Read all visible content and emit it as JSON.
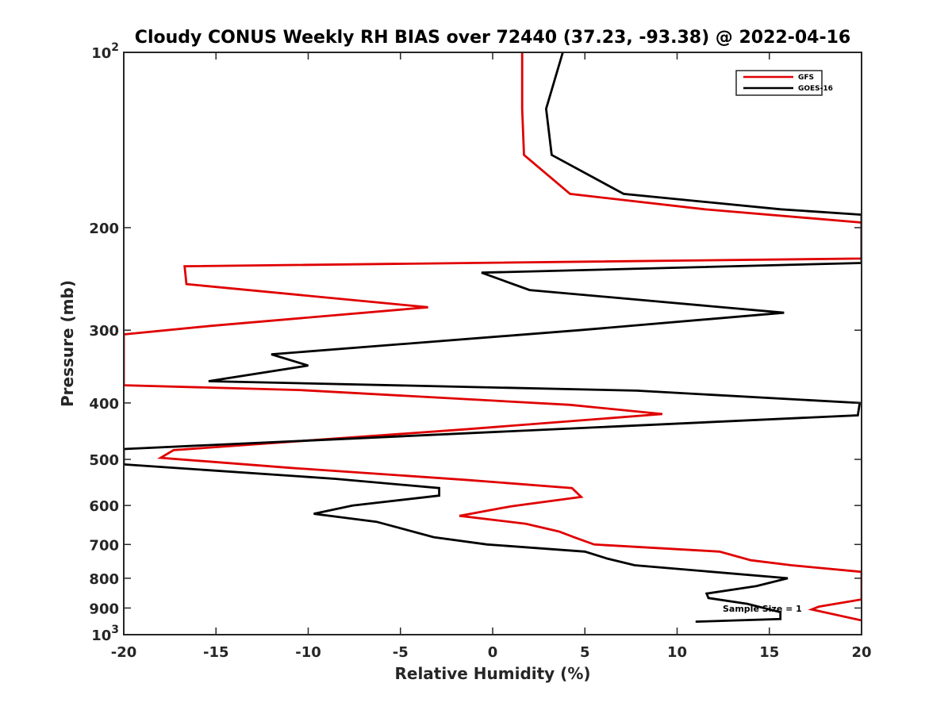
{
  "chart_data": {
    "type": "line",
    "title": "Cloudy CONUS Weekly RH BIAS over 72440 (37.23, -93.38) @ 2022-04-16",
    "xlabel": "Relative Humidity (%)",
    "ylabel": "Pressure (mb)",
    "xlim": [
      -20,
      20
    ],
    "ylim": [
      100,
      1000
    ],
    "y_scale": "log",
    "y_reversed": true,
    "grid": false,
    "legend_position": "top-right",
    "x_ticks": [
      -20,
      -15,
      -10,
      -5,
      0,
      5,
      10,
      15,
      20
    ],
    "x_tick_labels": [
      "-20",
      "-15",
      "-10",
      "-5",
      "0",
      "5",
      "10",
      "15",
      "20"
    ],
    "y_ticks": [
      {
        "value": 100,
        "base": "10",
        "exp": "2"
      },
      {
        "value": 200,
        "label": "200"
      },
      {
        "value": 300,
        "label": "300"
      },
      {
        "value": 400,
        "label": "400"
      },
      {
        "value": 500,
        "label": "500"
      },
      {
        "value": 600,
        "label": "600"
      },
      {
        "value": 700,
        "label": "700"
      },
      {
        "value": 800,
        "label": "800"
      },
      {
        "value": 900,
        "label": "900"
      },
      {
        "value": 1000,
        "base": "10",
        "exp": "3"
      }
    ],
    "annotation": "Sample Size = 1",
    "series": [
      {
        "name": "GFS",
        "color": "#e00000",
        "points": [
          [
            1.6,
            100
          ],
          [
            1.6,
            125
          ],
          [
            1.7,
            150
          ],
          [
            4.2,
            175
          ],
          [
            11.5,
            186
          ],
          [
            20,
            196
          ],
          [
            20,
            226
          ],
          [
            -16.7,
            233
          ],
          [
            -16.6,
            250
          ],
          [
            -3.5,
            274
          ],
          [
            -15.3,
            295
          ],
          [
            -20,
            305
          ],
          [
            -20,
            373
          ],
          [
            -10.5,
            380
          ],
          [
            4.2,
            403
          ],
          [
            9.2,
            418
          ],
          [
            -1.5,
            444
          ],
          [
            -17.3,
            482
          ],
          [
            -18.0,
            497
          ],
          [
            -11.0,
            517
          ],
          [
            -1.5,
            542
          ],
          [
            4.3,
            560
          ],
          [
            4.8,
            580
          ],
          [
            1.0,
            602
          ],
          [
            -1.8,
            625
          ],
          [
            1.8,
            645
          ],
          [
            3.6,
            665
          ],
          [
            4.4,
            680
          ],
          [
            5.5,
            700
          ],
          [
            12.3,
            720
          ],
          [
            14,
            745
          ],
          [
            16.2,
            760
          ],
          [
            20,
            780
          ],
          [
            20,
            870
          ],
          [
            17.7,
            895
          ],
          [
            17.3,
            905
          ],
          [
            20,
            945
          ]
        ]
      },
      {
        "name": "GOES-16",
        "color": "#000000",
        "points": [
          [
            3.8,
            100
          ],
          [
            2.9,
            125
          ],
          [
            3.2,
            150
          ],
          [
            7.1,
            175
          ],
          [
            15.6,
            186
          ],
          [
            20,
            190
          ],
          [
            20,
            230
          ],
          [
            -0.6,
            239
          ],
          [
            2.0,
            256
          ],
          [
            15.8,
            280
          ],
          [
            4.7,
            300
          ],
          [
            -12.0,
            330
          ],
          [
            -10.0,
            345
          ],
          [
            -15.4,
            367
          ],
          [
            7.8,
            381
          ],
          [
            19.9,
            400
          ],
          [
            19.8,
            420
          ],
          [
            -20,
            480
          ],
          [
            -20,
            510
          ],
          [
            -8.5,
            540
          ],
          [
            -2.9,
            560
          ],
          [
            -2.9,
            577
          ],
          [
            -7.6,
            600
          ],
          [
            -9.7,
            620
          ],
          [
            -6.3,
            640
          ],
          [
            -3.2,
            680
          ],
          [
            -0.3,
            700
          ],
          [
            5.0,
            720
          ],
          [
            6.2,
            740
          ],
          [
            7.7,
            760
          ],
          [
            16.0,
            800
          ],
          [
            14.3,
            825
          ],
          [
            11.6,
            850
          ],
          [
            11.7,
            865
          ],
          [
            13.8,
            885
          ],
          [
            15.6,
            915
          ],
          [
            15.6,
            940
          ],
          [
            11.0,
            950
          ]
        ]
      }
    ]
  }
}
